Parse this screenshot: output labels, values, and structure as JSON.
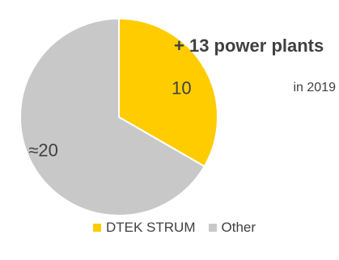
{
  "chart_data": {
    "type": "pie",
    "series": [
      {
        "name": "DTEK STRUM",
        "value": 10,
        "label": "10",
        "color": "#FFCC00"
      },
      {
        "name": "Other",
        "value": 20,
        "label": "≈20",
        "color": "#C8C8C8"
      }
    ],
    "annotation": {
      "main": "+ 13 power plants",
      "sub": "in 2019"
    },
    "legend": {
      "position": "bottom"
    }
  }
}
